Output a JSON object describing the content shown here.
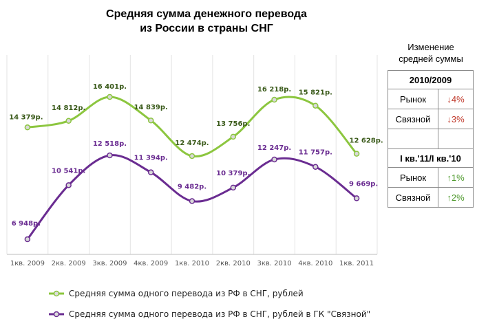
{
  "title_line1": "Средняя сумма денежного перевода",
  "title_line2": "из России в страны СНГ",
  "side_title_line1": "Изменение",
  "side_title_line2": "средней суммы",
  "table": {
    "section1": "2010/2009",
    "section2": "I кв.'11/I кв.'10",
    "rows1": [
      {
        "label": "Рынок",
        "value": "↓4%"
      },
      {
        "label": "Связной",
        "value": "↓3%"
      }
    ],
    "rows2": [
      {
        "label": "Рынок",
        "value": "↑1%"
      },
      {
        "label": "Связной",
        "value": "↑2%"
      }
    ],
    "down_color": "#c0392b",
    "up_color": "#4f9a2e"
  },
  "chart_data": {
    "type": "line",
    "categories": [
      "1кв. 2009",
      "2кв. 2009",
      "3кв. 2009",
      "4кв. 2009",
      "1кв. 2010",
      "2кв. 2010",
      "3кв. 2010",
      "4кв. 2010",
      "1кв. 2011"
    ],
    "series": [
      {
        "name": "Средняя сумма одного перевода из РФ в СНГ, рублей",
        "color": "#8cc63f",
        "label_color": "#3a5a1a",
        "values": [
          14379,
          14812,
          16401,
          14839,
          12474,
          13756,
          16218,
          15821,
          12628
        ],
        "labels": [
          "14 379р.",
          "14 812р.",
          "16 401р.",
          "14 839р.",
          "12 474р.",
          "13 756р.",
          "16 218р.",
          "15 821р.",
          "12 628р."
        ]
      },
      {
        "name": "Средняя сумма одного перевода из РФ в СНГ, рублей в ГК \"Связной\"",
        "color": "#6a2c91",
        "label_color": "#6a2c91",
        "values": [
          6948,
          10541,
          12518,
          11394,
          9482,
          10379,
          12247,
          11757,
          9669
        ],
        "labels": [
          "6 948р.",
          "10 541р.",
          "12 518р.",
          "11 394р.",
          "9 482р.",
          "10 379р.",
          "12 247р.",
          "11 757р.",
          "9 669р."
        ]
      }
    ],
    "grid": "vertical",
    "legend": "bottom"
  }
}
